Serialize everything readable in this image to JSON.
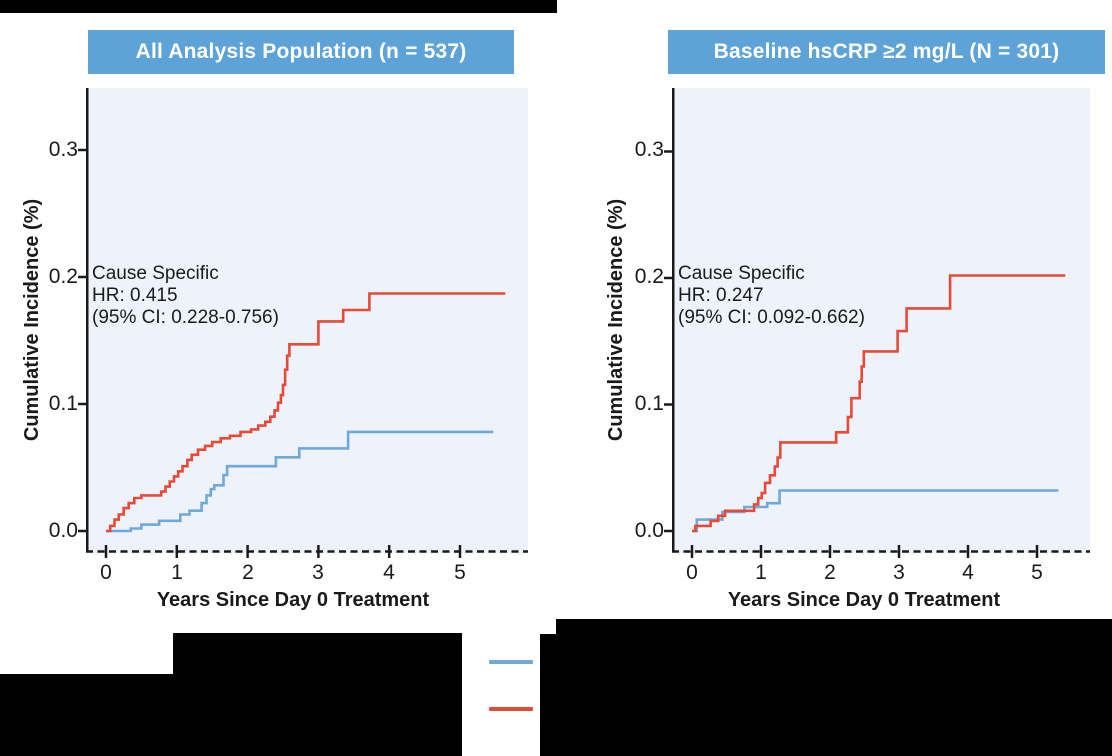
{
  "figure": {
    "panels": [
      {
        "header": "All Analysis Population (n = 537)",
        "annotation_lines": [
          "Cause Specific",
          "HR: 0.415",
          "(95% CI: 0.228-0.756)"
        ]
      },
      {
        "header": "Baseline hsCRP ≥2 mg/L (N = 301)",
        "annotation_lines": [
          "Cause Specific",
          "HR: 0.247",
          "(95% CI: 0.092-0.662)"
        ]
      }
    ],
    "axes": {
      "xlabel": "Years Since Day 0 Treatment",
      "ylabel": "Cumulative Incidence (%)",
      "xtick_labels": [
        "0",
        "1",
        "2",
        "3",
        "4",
        "5"
      ],
      "ytick_labels": [
        "0.0",
        "0.1",
        "0.2",
        "0.3"
      ]
    },
    "colors": {
      "header_bg": "#5ea3d8",
      "plot_bg": "#eef2fa",
      "series_blue": "#6fa9d9",
      "series_red": "#e64a38",
      "axis": "#1a1a1a",
      "redaction": "#000000"
    }
  },
  "chart_data": [
    {
      "type": "line",
      "subtype": "step-cumulative-incidence",
      "title": "All Analysis Population (n = 537)",
      "xlabel": "Years Since Day 0 Treatment",
      "ylabel": "Cumulative Incidence (%)",
      "annotation": "Cause Specific HR: 0.415 (95% CI: 0.228-0.756)",
      "xlim": [
        0,
        5.9
      ],
      "ylim": [
        0,
        0.35
      ],
      "xticks": [
        0,
        1,
        2,
        3,
        4,
        5
      ],
      "yticks": [
        0,
        0.1,
        0.2,
        0.3
      ],
      "grid": false,
      "series": [
        {
          "name": "blue-series",
          "color": "#6fa9d9",
          "points": [
            [
              0,
              0
            ],
            [
              0.35,
              0.002
            ],
            [
              0.5,
              0.005
            ],
            [
              0.75,
              0.008
            ],
            [
              1.05,
              0.013
            ],
            [
              1.18,
              0.016
            ],
            [
              1.35,
              0.022
            ],
            [
              1.42,
              0.028
            ],
            [
              1.48,
              0.033
            ],
            [
              1.53,
              0.036
            ],
            [
              1.66,
              0.044
            ],
            [
              1.71,
              0.051
            ],
            [
              2.4,
              0.058
            ],
            [
              2.73,
              0.065
            ],
            [
              3.42,
              0.078
            ],
            [
              5.47,
              0.078
            ]
          ]
        },
        {
          "name": "red-series",
          "color": "#e64a38",
          "points": [
            [
              0,
              0
            ],
            [
              0.06,
              0.004
            ],
            [
              0.12,
              0.009
            ],
            [
              0.18,
              0.013
            ],
            [
              0.25,
              0.018
            ],
            [
              0.32,
              0.022
            ],
            [
              0.4,
              0.026
            ],
            [
              0.5,
              0.028
            ],
            [
              0.78,
              0.031
            ],
            [
              0.84,
              0.035
            ],
            [
              0.9,
              0.039
            ],
            [
              0.96,
              0.043
            ],
            [
              1.02,
              0.047
            ],
            [
              1.08,
              0.051
            ],
            [
              1.15,
              0.056
            ],
            [
              1.21,
              0.06
            ],
            [
              1.3,
              0.064
            ],
            [
              1.4,
              0.067
            ],
            [
              1.5,
              0.07
            ],
            [
              1.62,
              0.073
            ],
            [
              1.75,
              0.075
            ],
            [
              1.9,
              0.078
            ],
            [
              2.05,
              0.08
            ],
            [
              2.15,
              0.083
            ],
            [
              2.25,
              0.086
            ],
            [
              2.32,
              0.09
            ],
            [
              2.38,
              0.095
            ],
            [
              2.43,
              0.101
            ],
            [
              2.47,
              0.107
            ],
            [
              2.5,
              0.115
            ],
            [
              2.53,
              0.127
            ],
            [
              2.56,
              0.138
            ],
            [
              2.59,
              0.147
            ],
            [
              3.0,
              0.165
            ],
            [
              3.35,
              0.174
            ],
            [
              3.72,
              0.187
            ],
            [
              5.64,
              0.187
            ]
          ]
        }
      ]
    },
    {
      "type": "line",
      "subtype": "step-cumulative-incidence",
      "title": "Baseline hsCRP ≥2 mg/L (N = 301)",
      "xlabel": "Years Since Day 0 Treatment",
      "ylabel": "Cumulative Incidence (%)",
      "annotation": "Cause Specific HR: 0.247 (95% CI: 0.092-0.662)",
      "xlim": [
        0,
        5.9
      ],
      "ylim": [
        0,
        0.35
      ],
      "xticks": [
        0,
        1,
        2,
        3,
        4,
        5
      ],
      "yticks": [
        0,
        0.1,
        0.2,
        0.3
      ],
      "grid": false,
      "series": [
        {
          "name": "blue-series",
          "color": "#6fa9d9",
          "points": [
            [
              0,
              0
            ],
            [
              0.07,
              0.009
            ],
            [
              0.44,
              0.015
            ],
            [
              0.76,
              0.019
            ],
            [
              1.09,
              0.022
            ],
            [
              1.27,
              0.032
            ],
            [
              5.31,
              0.032
            ]
          ]
        },
        {
          "name": "red-series",
          "color": "#e64a38",
          "points": [
            [
              0,
              0
            ],
            [
              0.05,
              0.004
            ],
            [
              0.27,
              0.008
            ],
            [
              0.38,
              0.012
            ],
            [
              0.48,
              0.016
            ],
            [
              0.9,
              0.021
            ],
            [
              0.96,
              0.026
            ],
            [
              1.01,
              0.03
            ],
            [
              1.06,
              0.038
            ],
            [
              1.13,
              0.044
            ],
            [
              1.2,
              0.051
            ],
            [
              1.24,
              0.058
            ],
            [
              1.28,
              0.07
            ],
            [
              2.09,
              0.078
            ],
            [
              2.26,
              0.09
            ],
            [
              2.31,
              0.105
            ],
            [
              2.43,
              0.118
            ],
            [
              2.46,
              0.13
            ],
            [
              2.49,
              0.142
            ],
            [
              2.98,
              0.158
            ],
            [
              3.11,
              0.176
            ],
            [
              3.74,
              0.202
            ],
            [
              5.41,
              0.202
            ]
          ]
        }
      ]
    }
  ]
}
